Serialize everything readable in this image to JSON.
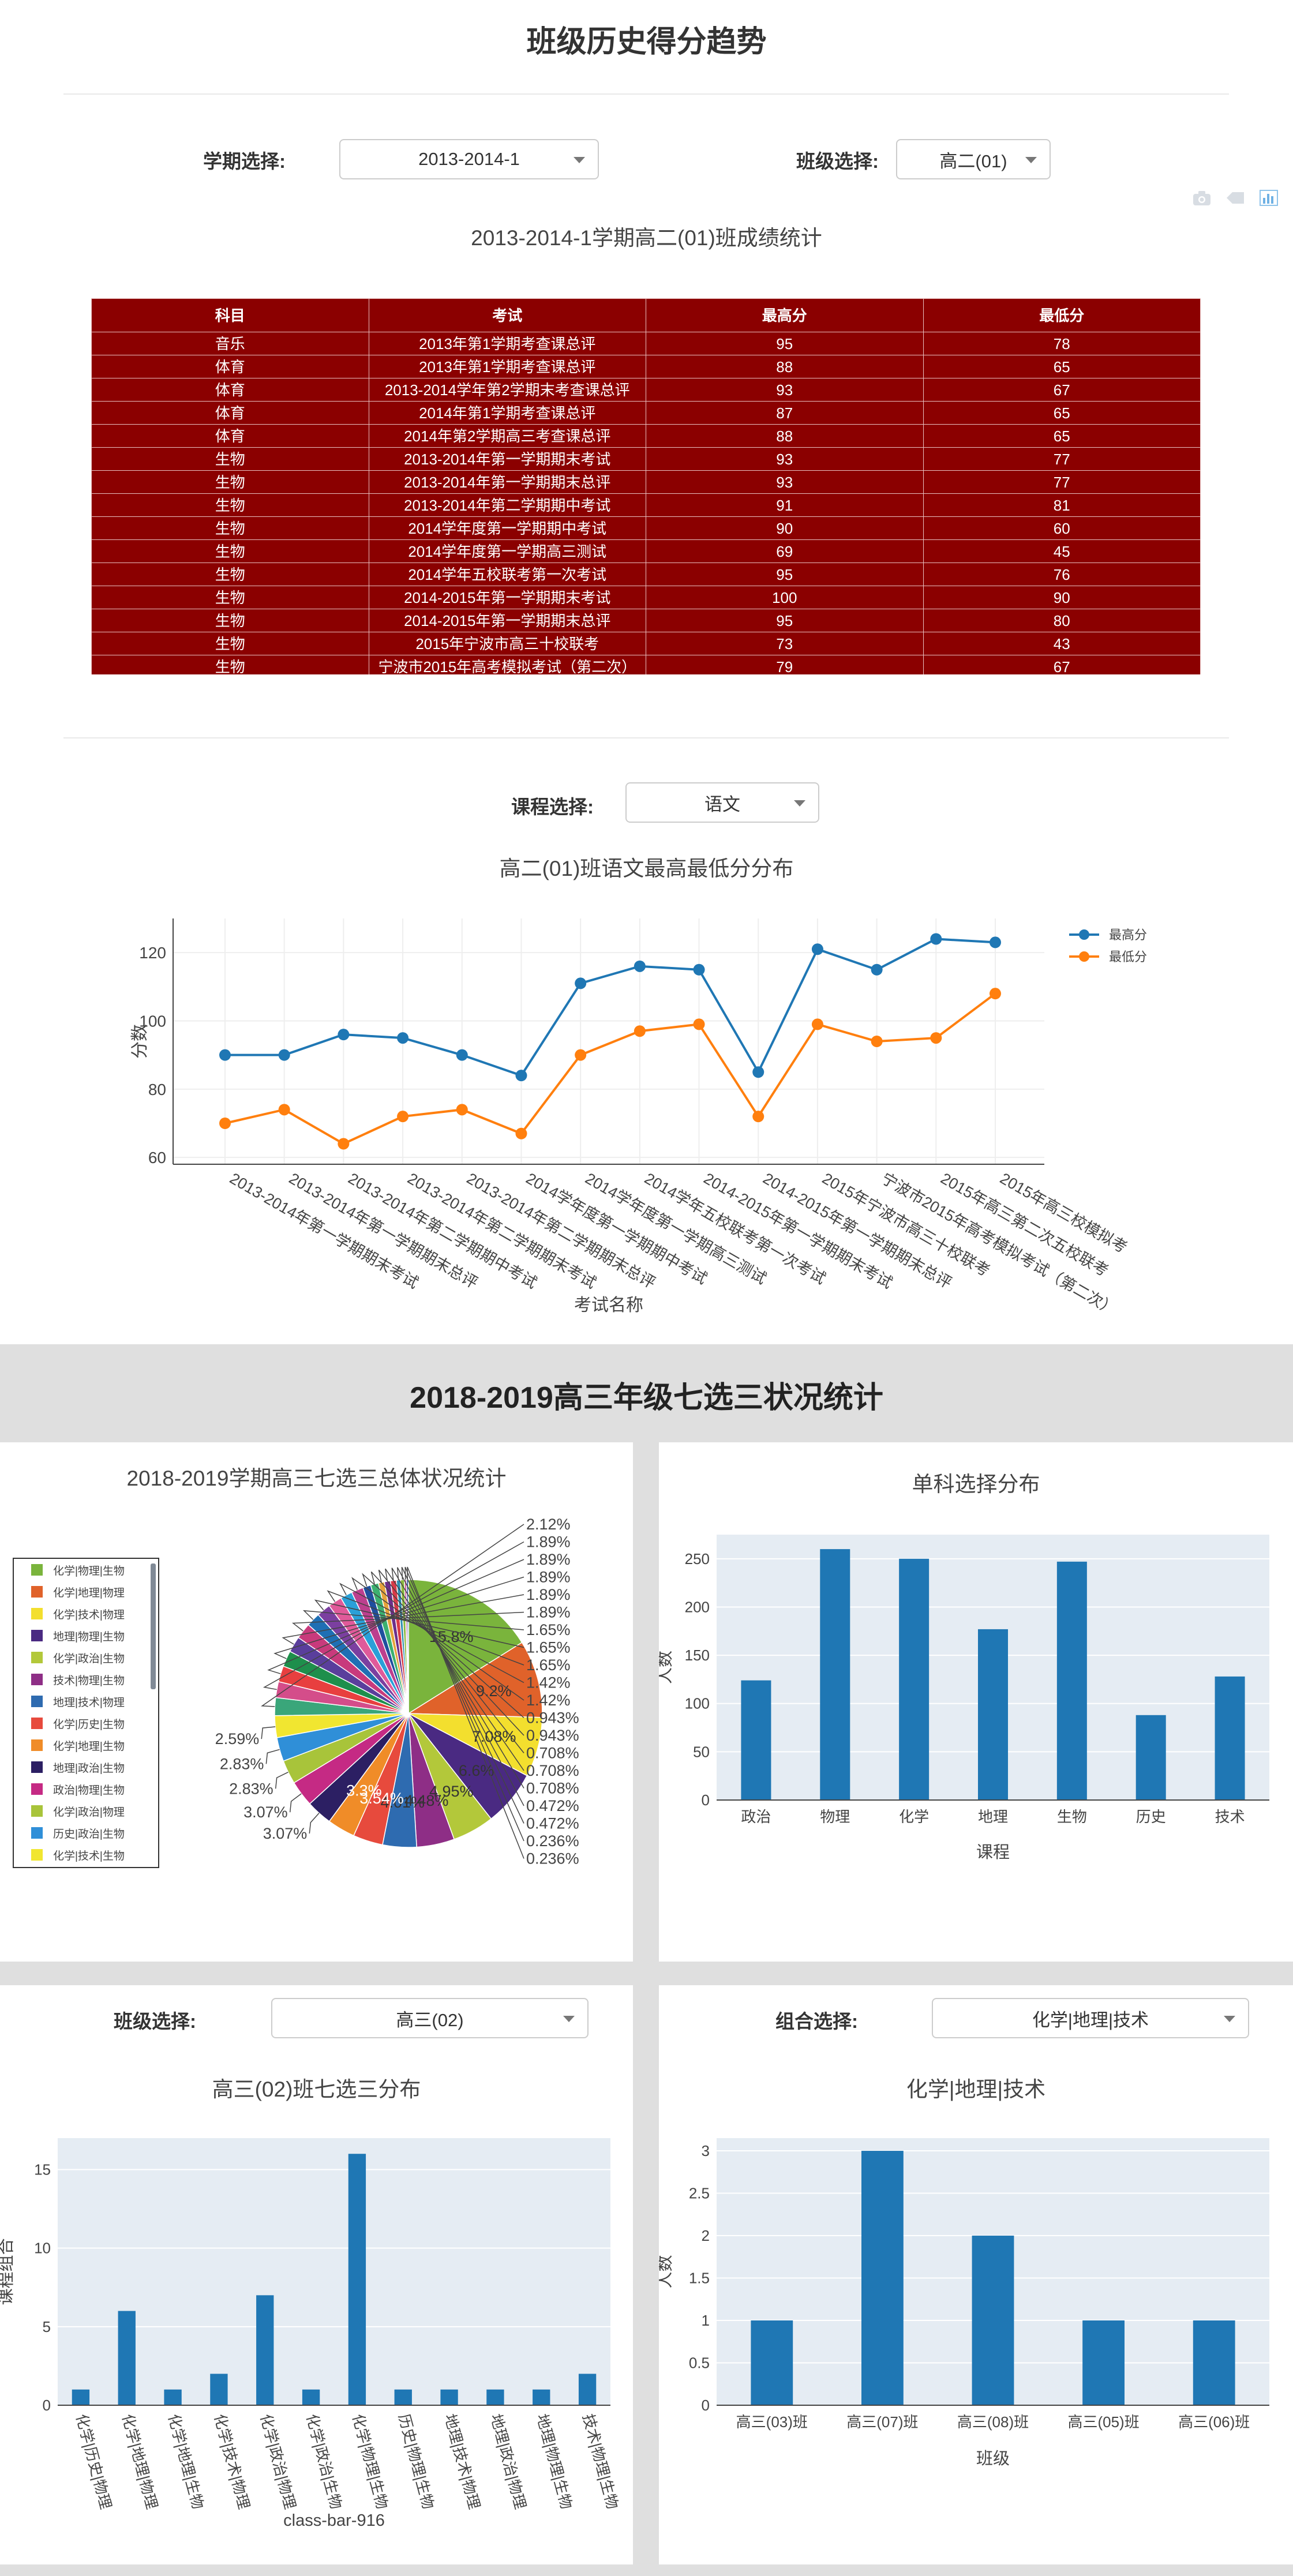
{
  "page_title": "班级历史得分趋势",
  "term_filter": {
    "label": "学期选择:",
    "value": "2013-2014-1"
  },
  "class_filter": {
    "label": "班级选择:",
    "value": "高二(01)"
  },
  "table_title": "2013-2014-1学期高二(01)班成绩统计",
  "table": {
    "headers": [
      "科目",
      "考试",
      "最高分",
      "最低分"
    ],
    "rows": [
      [
        "音乐",
        "2013年第1学期考查课总评",
        "95",
        "78"
      ],
      [
        "体育",
        "2013年第1学期考查课总评",
        "88",
        "65"
      ],
      [
        "体育",
        "2013-2014学年第2学期末考查课总评",
        "93",
        "67"
      ],
      [
        "体育",
        "2014年第1学期考查课总评",
        "87",
        "65"
      ],
      [
        "体育",
        "2014年第2学期高三考查课总评",
        "88",
        "65"
      ],
      [
        "生物",
        "2013-2014年第一学期期末考试",
        "93",
        "77"
      ],
      [
        "生物",
        "2013-2014年第一学期期末总评",
        "93",
        "77"
      ],
      [
        "生物",
        "2013-2014年第二学期期中考试",
        "91",
        "81"
      ],
      [
        "生物",
        "2014学年度第一学期期中考试",
        "90",
        "60"
      ],
      [
        "生物",
        "2014学年度第一学期高三测试",
        "69",
        "45"
      ],
      [
        "生物",
        "2014学年五校联考第一次考试",
        "95",
        "76"
      ],
      [
        "生物",
        "2014-2015年第一学期期末考试",
        "100",
        "90"
      ],
      [
        "生物",
        "2014-2015年第一学期期末总评",
        "95",
        "80"
      ],
      [
        "生物",
        "2015年宁波市高三十校联考",
        "73",
        "43"
      ],
      [
        "生物",
        "宁波市2015年高考模拟考试（第二次）",
        "79",
        "67"
      ]
    ]
  },
  "course_filter": {
    "label": "课程选择:",
    "value": "语文"
  },
  "line_chart": {
    "title": "高二(01)班语文最高最低分分布",
    "chart_data": {
      "type": "line",
      "title": "高二(01)班语文最高最低分分布",
      "xlabel": "考试名称",
      "ylabel": "分数",
      "ylim": [
        58,
        130
      ],
      "yticks": [
        "60",
        "80",
        "100",
        "120"
      ],
      "categories": [
        "2013-2014年第一学期期末考试",
        "2013-2014年第一学期期末总评",
        "2013-2014年第二学期期中考试",
        "2013-2014年第二学期期末考试",
        "2013-2014年第二学期期末总评",
        "2014学年度第一学期期中考试",
        "2014学年度第一学期高三测试",
        "2014学年五校联考第一次考试",
        "2014-2015年第一学期期末考试",
        "2014-2015年第一学期期末总评",
        "2015年宁波市高三十校联考",
        "宁波市2015年高考模拟考试（第二次）",
        "2015年高三第二次五校联考",
        "2015年高三校模拟考"
      ],
      "series": [
        {
          "name": "最高分",
          "color": "#1f77b4",
          "values": [
            90,
            90,
            96,
            95,
            90,
            84,
            111,
            116,
            115,
            85,
            121,
            115,
            124,
            123
          ]
        },
        {
          "name": "最低分",
          "color": "#ff7f0e",
          "values": [
            70,
            74,
            64,
            72,
            74,
            67,
            90,
            97,
            99,
            72,
            99,
            94,
            95,
            108
          ]
        }
      ],
      "legend": "top-right",
      "grid": true
    }
  },
  "section2_title": "2018-2019高三年级七选三状况统计",
  "pie_chart": {
    "title": "2018-2019学期高三七选三总体状况统计",
    "legend_items": [
      "化学|物理|生物",
      "化学|地理|物理",
      "化学|技术|物理",
      "地理|物理|生物",
      "化学|政治|生物",
      "技术|物理|生物",
      "地理|技术|物理",
      "化学|历史|生物",
      "化学|地理|生物",
      "地理|政治|生物",
      "政治|物理|生物",
      "化学|政治|物理",
      "历史|政治|生物",
      "化学|技术|生物"
    ],
    "chart_data": {
      "type": "pie",
      "values": [
        15.8,
        9.2,
        7.08,
        6.6,
        4.95,
        4.48,
        4.01,
        3.54,
        3.3,
        3.07,
        3.07,
        2.83,
        2.83,
        2.59,
        2.12,
        1.89,
        1.89,
        1.89,
        1.89,
        1.89,
        1.65,
        1.65,
        1.65,
        1.42,
        1.42,
        0.943,
        0.943,
        0.708,
        0.708,
        0.708,
        0.472,
        0.472,
        0.236,
        0.236
      ],
      "labels": [
        "15.8%",
        "9.2%",
        "7.08%",
        "6.6%",
        "4.95%",
        "4.48%",
        "4.01%",
        "3.54%",
        "3.3%",
        "3.07%",
        "3.07%",
        "2.83%",
        "2.83%",
        "2.59%",
        "2.12%",
        "1.89%",
        "1.89%",
        "1.89%",
        "1.89%",
        "1.89%",
        "1.65%",
        "1.65%",
        "1.65%",
        "1.42%",
        "1.42%",
        "0.943%",
        "0.943%",
        "0.708%",
        "0.708%",
        "0.708%",
        "0.472%",
        "0.472%",
        "0.236%",
        "0.236%"
      ],
      "colors": [
        "#7ab43c",
        "#e0622a",
        "#f3df2e",
        "#4a2a82",
        "#b3c83a",
        "#8e2e86",
        "#2e6bb0",
        "#e74a3d",
        "#f08c28",
        "#2c1f63",
        "#c52a84",
        "#a8c43a",
        "#2f8fd8",
        "#f1e630",
        "#3aa67a",
        "#d44d8a",
        "#e83f3f",
        "#1e8f4c",
        "#5a3e9c",
        "#c83a7c",
        "#1f6fb4",
        "#7b3fa0",
        "#e05a9a",
        "#2aa0d8",
        "#bc3f8e",
        "#1f4f9e",
        "#3cb070",
        "#e6a33a",
        "#6d2e8a",
        "#d83a48",
        "#2e8fb0",
        "#8ab83c",
        "#c84a94",
        "#3a5fa8"
      ]
    }
  },
  "subject_bar": {
    "title": "单科选择分布",
    "chart_data": {
      "type": "bar",
      "categories": [
        "政治",
        "物理",
        "化学",
        "地理",
        "生物",
        "历史",
        "技术"
      ],
      "values": [
        124,
        260,
        250,
        177,
        247,
        88,
        128
      ],
      "xlabel": "课程",
      "ylabel": "人数",
      "ylim": [
        0,
        275
      ],
      "yticks": [
        "0",
        "50",
        "100",
        "150",
        "200",
        "250"
      ]
    }
  },
  "class_select": {
    "label": "班级选择:",
    "value": "高三(02)"
  },
  "class_bar": {
    "title": "高三(02)班七选三分布",
    "chart_data": {
      "type": "bar",
      "categories": [
        "化学|历史|物理",
        "化学|地理|物理",
        "化学|地理|生物",
        "化学|技术|物理",
        "化学|政治|物理",
        "化学|政治|生物",
        "化学|物理|生物",
        "历史|物理|生物",
        "地理|技术|物理",
        "地理|政治|物理",
        "地理|物理|生物",
        "技术|物理|生物"
      ],
      "values": [
        1,
        6,
        1,
        2,
        7,
        1,
        16,
        1,
        1,
        1,
        1,
        2
      ],
      "xlabel": "class-bar-916",
      "ylabel": "课程组合",
      "ylim": [
        0,
        17
      ],
      "yticks": [
        "0",
        "5",
        "10",
        "15"
      ]
    }
  },
  "combo_select": {
    "label": "组合选择:",
    "value": "化学|地理|技术"
  },
  "combo_bar": {
    "title": "化学|地理|技术",
    "chart_data": {
      "type": "bar",
      "categories": [
        "高三(03)班",
        "高三(07)班",
        "高三(08)班",
        "高三(05)班",
        "高三(06)班"
      ],
      "values": [
        1,
        3,
        2,
        1,
        1
      ],
      "xlabel": "班级",
      "ylabel": "人数",
      "ylim": [
        0,
        3.15
      ],
      "yticks": [
        "0",
        "0.5",
        "1",
        "1.5",
        "2",
        "2.5",
        "3"
      ]
    }
  }
}
